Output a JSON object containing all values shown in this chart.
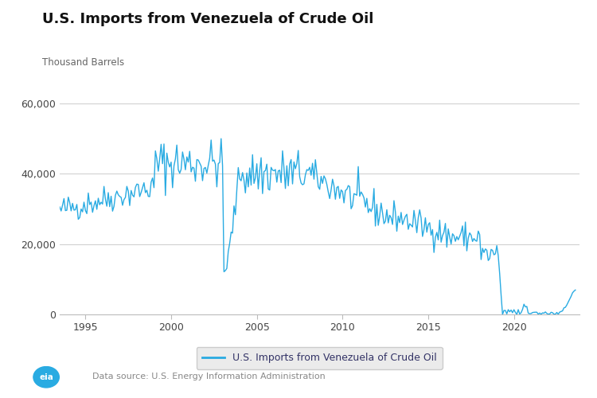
{
  "title": "U.S. Imports from Venezuela of Crude Oil",
  "ylabel": "Thousand Barrels",
  "legend_label": "U.S. Imports from Venezuela of Crude Oil",
  "source_text": "Data source: U.S. Energy Information Administration",
  "line_color": "#29ABE2",
  "ylim": [
    0,
    60000
  ],
  "yticks": [
    0,
    20000,
    40000,
    60000
  ],
  "ytick_labels": [
    "0",
    "20,000",
    "40,000",
    "60,000"
  ],
  "xlim_start": 1993.5,
  "xlim_end": 2023.8,
  "xticks": [
    1995,
    2000,
    2005,
    2010,
    2015,
    2020
  ],
  "background_color": "#ffffff",
  "grid_color": "#cccccc",
  "title_fontsize": 13,
  "label_fontsize": 8.5,
  "tick_fontsize": 9,
  "legend_text_color": "#333366",
  "title_color": "#111111",
  "ylabel_color": "#666666"
}
